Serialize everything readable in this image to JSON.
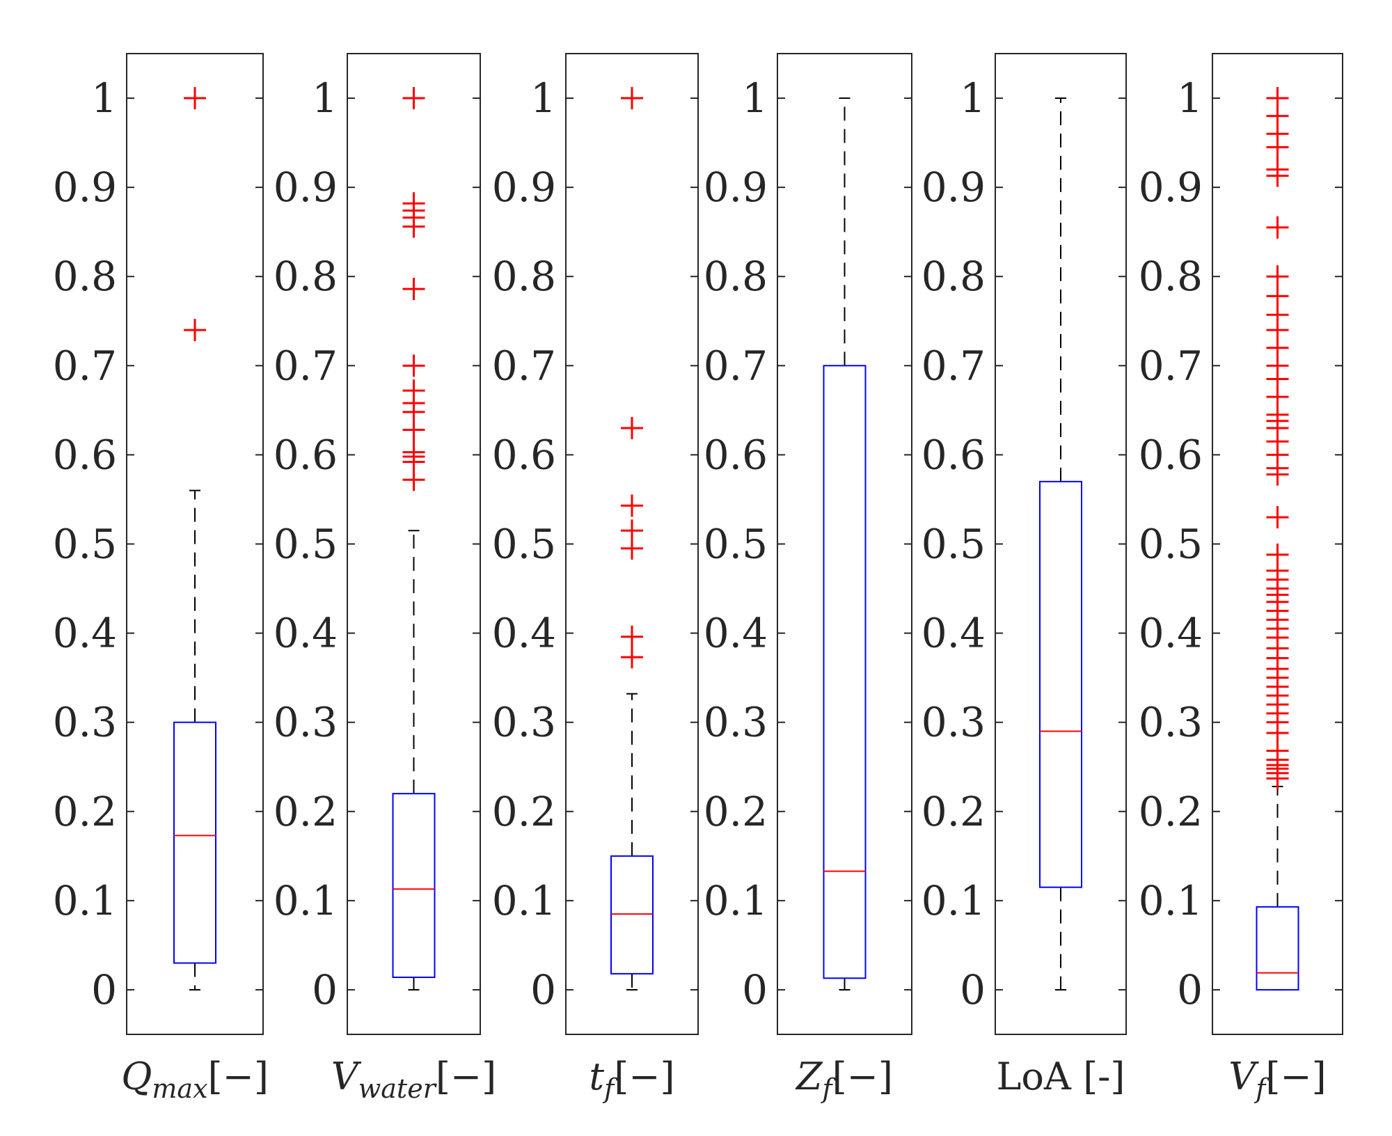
{
  "chart_data": {
    "type": "boxplot",
    "ylim": [
      -0.05,
      1.05
    ],
    "yticks": [
      0,
      0.1,
      0.2,
      0.3,
      0.4,
      0.5,
      0.6,
      0.7,
      0.8,
      0.9,
      1
    ],
    "ytick_labels": [
      "0",
      "0.1",
      "0.2",
      "0.3",
      "0.4",
      "0.5",
      "0.6",
      "0.7",
      "0.8",
      "0.9",
      "1"
    ],
    "colors": {
      "box": "#0000ff",
      "median": "#ff0000",
      "outlier": "#ff0000",
      "whisker": "#000000",
      "axis": "#262626"
    },
    "panels": [
      {
        "label": {
          "base": "Q",
          "sub": "max",
          "suffix": "[−]",
          "italic": true
        },
        "q1": 0.03,
        "median": 0.173,
        "q3": 0.3,
        "whisker_low": 0.0,
        "whisker_high": 0.56,
        "outliers": [
          0.74,
          1.0
        ]
      },
      {
        "label": {
          "base": "V",
          "sub": "water",
          "suffix": "[−]",
          "italic": true
        },
        "q1": 0.014,
        "median": 0.113,
        "q3": 0.22,
        "whisker_low": 0.0,
        "whisker_high": 0.515,
        "outliers": [
          0.572,
          0.592,
          0.598,
          0.603,
          0.628,
          0.648,
          0.658,
          0.672,
          0.7,
          0.786,
          0.856,
          0.866,
          0.874,
          0.882,
          1.0
        ]
      },
      {
        "label": {
          "base": "t",
          "sub": "f",
          "suffix": "[−]",
          "italic": true
        },
        "q1": 0.018,
        "median": 0.085,
        "q3": 0.15,
        "whisker_low": 0.0,
        "whisker_high": 0.332,
        "outliers": [
          0.373,
          0.396,
          0.495,
          0.515,
          0.543,
          0.63,
          1.0
        ]
      },
      {
        "label": {
          "base": "Z",
          "sub": "f",
          "suffix": "[−]",
          "italic": true
        },
        "q1": 0.013,
        "median": 0.133,
        "q3": 0.7,
        "whisker_low": 0.0,
        "whisker_high": 1.0,
        "outliers": []
      },
      {
        "label": {
          "base": "LoA [-]",
          "sub": "",
          "suffix": "",
          "italic": false
        },
        "q1": 0.115,
        "median": 0.29,
        "q3": 0.57,
        "whisker_low": 0.0,
        "whisker_high": 1.0,
        "outliers": []
      },
      {
        "label": {
          "base": "V",
          "sub": "f",
          "suffix": "[−]",
          "italic": true
        },
        "q1": 0.0,
        "median": 0.019,
        "q3": 0.093,
        "whisker_low": 0.0,
        "whisker_high": 0.228,
        "outliers": [
          0.237,
          0.243,
          0.248,
          0.252,
          0.258,
          0.268,
          0.288,
          0.3,
          0.31,
          0.32,
          0.33,
          0.34,
          0.35,
          0.36,
          0.372,
          0.383,
          0.395,
          0.405,
          0.415,
          0.425,
          0.435,
          0.443,
          0.45,
          0.46,
          0.47,
          0.488,
          0.53,
          0.578,
          0.585,
          0.6,
          0.615,
          0.63,
          0.638,
          0.645,
          0.665,
          0.685,
          0.7,
          0.72,
          0.74,
          0.757,
          0.778,
          0.8,
          0.855,
          0.913,
          0.92,
          0.945,
          0.96,
          0.98,
          1.0
        ]
      }
    ]
  }
}
